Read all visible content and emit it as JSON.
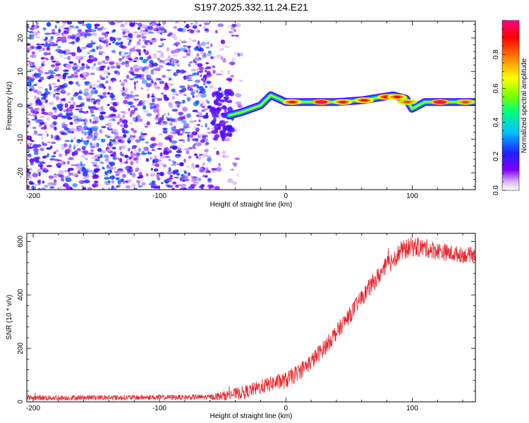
{
  "title": "S197.2025.332.11.24.E21",
  "chart_data": [
    {
      "type": "heatmap",
      "name": "spectrogram",
      "title": "S197.2025.332.11.24.E21",
      "xlabel": "Height of straight line (km)",
      "ylabel": "Frequency (Hz)",
      "xlim": [
        -205,
        150
      ],
      "ylim": [
        -25,
        25
      ],
      "xticks": [
        -200,
        -100,
        0,
        100
      ],
      "yticks": [
        -20,
        -10,
        0,
        10,
        20
      ],
      "colorbar": {
        "label": "Normalized spectral amplitude",
        "range": [
          0,
          1
        ],
        "ticks": [
          0.0,
          0.2,
          0.4,
          0.6,
          0.8
        ],
        "tick_labels": [
          "0.0",
          "0.2",
          "0.4",
          "0.6",
          "0.8"
        ],
        "colormap": [
          "#ffffff",
          "#d8b8f8",
          "#8000ff",
          "#2020ff",
          "#00c0ff",
          "#00ff80",
          "#80ff00",
          "#ffff00",
          "#ff8000",
          "#ff0000",
          "#ff0080"
        ]
      },
      "noise_region": {
        "x": [
          -205,
          -35
        ],
        "amplitude": [
          0.05,
          0.3
        ]
      },
      "signal_line": {
        "start": -40,
        "points": [
          {
            "x": -45,
            "y": -3
          },
          {
            "x": -35,
            "y": -2
          },
          {
            "x": -20,
            "y": 0
          },
          {
            "x": -12,
            "y": 3
          },
          {
            "x": 0,
            "y": 1
          },
          {
            "x": 20,
            "y": 1
          },
          {
            "x": 40,
            "y": 1
          },
          {
            "x": 60,
            "y": 1.5
          },
          {
            "x": 85,
            "y": 3
          },
          {
            "x": 95,
            "y": 2
          },
          {
            "x": 100,
            "y": -1
          },
          {
            "x": 110,
            "y": 1
          },
          {
            "x": 150,
            "y": 1
          }
        ],
        "peaks": [
          {
            "x": 5,
            "y": 1,
            "amp": 0.9
          },
          {
            "x": 28,
            "y": 1,
            "amp": 1.0
          },
          {
            "x": 45,
            "y": 1,
            "amp": 0.9
          },
          {
            "x": 62,
            "y": 1.5,
            "amp": 0.9
          },
          {
            "x": 80,
            "y": 2.5,
            "amp": 0.95
          },
          {
            "x": 88,
            "y": 2.5,
            "amp": 0.9
          },
          {
            "x": 96,
            "y": 1,
            "amp": 0.85
          },
          {
            "x": 122,
            "y": 1,
            "amp": 1.0
          },
          {
            "x": 142,
            "y": 1,
            "amp": 0.85
          }
        ]
      }
    },
    {
      "type": "line",
      "name": "snr",
      "xlabel": "Height of straight line (km)",
      "ylabel": "SNR (10 * v/v)",
      "xlim": [
        -205,
        150
      ],
      "ylim": [
        0,
        630
      ],
      "xticks": [
        -200,
        -100,
        0,
        100
      ],
      "yticks": [
        0,
        200,
        400,
        600
      ],
      "color": "#e8242b",
      "series": [
        {
          "name": "SNR",
          "x": [
            -205,
            -180,
            -150,
            -120,
            -90,
            -60,
            -50,
            -40,
            -30,
            -20,
            -10,
            0,
            10,
            20,
            30,
            40,
            50,
            60,
            70,
            80,
            90,
            100,
            110,
            120,
            130,
            140,
            150
          ],
          "y": [
            15,
            15,
            16,
            16,
            17,
            18,
            22,
            30,
            40,
            55,
            70,
            80,
            110,
            150,
            200,
            260,
            320,
            390,
            450,
            510,
            560,
            580,
            575,
            565,
            555,
            550,
            550
          ],
          "noise_amplitude": [
            10,
            10,
            10,
            10,
            10,
            10,
            18,
            22,
            25,
            28,
            30,
            32,
            32,
            32,
            32,
            32,
            32,
            32,
            34,
            36,
            38,
            38,
            36,
            34,
            32,
            30,
            28
          ]
        }
      ]
    }
  ]
}
